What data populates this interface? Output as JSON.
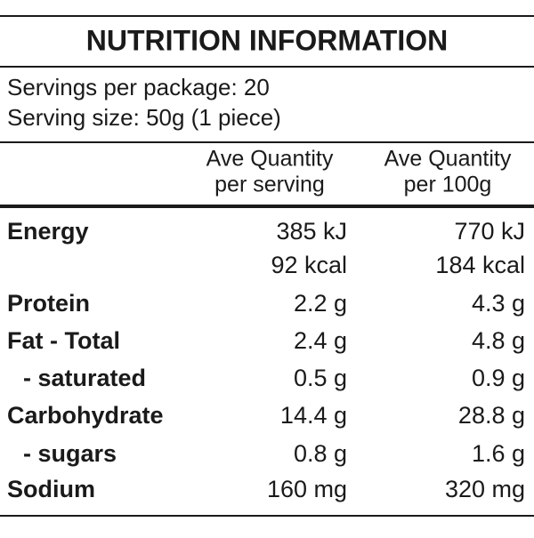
{
  "title": "NUTRITION INFORMATION",
  "servings": [
    "Servings per package: 20",
    "Serving size: 50g (1 piece)"
  ],
  "columns": [
    [
      "Ave Quantity",
      "per serving"
    ],
    [
      "Ave Quantity",
      "per 100g"
    ]
  ],
  "rows": [
    {
      "label": "Energy",
      "cells": [
        "385 kJ",
        "770 kJ"
      ]
    },
    {
      "cells": [
        "92 kcal",
        "184 kcal"
      ]
    },
    {
      "label": "Protein",
      "cells": [
        "2.2 g",
        "4.3 g"
      ]
    },
    {
      "label": "Fat - Total",
      "cells": [
        "2.4 g",
        "4.8 g"
      ]
    },
    {
      "label": "- saturated",
      "indent": true,
      "cells": [
        "0.5 g",
        "0.9 g"
      ]
    },
    {
      "label": "Carbohydrate",
      "cells": [
        "14.4 g",
        "28.8 g"
      ]
    },
    {
      "label": "- sugars",
      "indent": true,
      "cells": [
        "0.8 g",
        "1.6 g"
      ]
    },
    {
      "label": "Sodium",
      "cells": [
        "160 mg",
        "320 mg"
      ]
    }
  ]
}
